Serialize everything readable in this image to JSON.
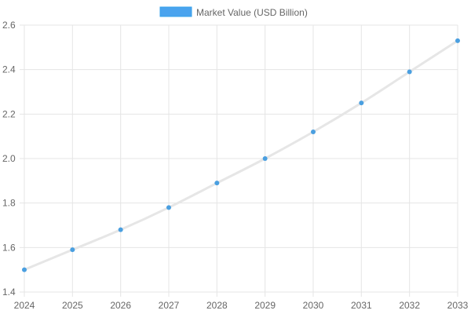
{
  "chart_data": {
    "type": "line",
    "title": "",
    "xlabel": "",
    "ylabel": "",
    "x": [
      "2024",
      "2025",
      "2026",
      "2027",
      "2028",
      "2029",
      "2030",
      "2031",
      "2032",
      "2033"
    ],
    "series": [
      {
        "name": "Market Value (USD Billion)",
        "values": [
          1.5,
          1.59,
          1.68,
          1.78,
          1.89,
          2.0,
          2.12,
          2.25,
          2.39,
          2.53
        ]
      }
    ],
    "ylim": [
      1.4,
      2.6
    ],
    "yticks": [
      "1.4",
      "1.6",
      "1.8",
      "2.0",
      "2.2",
      "2.4",
      "2.6"
    ],
    "grid": true,
    "legend_position": "top",
    "colors": {
      "line": "#e6e6e6",
      "point": "#4a9fe0",
      "legend_swatch_fill": "#4aa3ee",
      "legend_swatch_border": "#36a2eb",
      "grid": "#e5e5e5",
      "text": "#666666"
    }
  }
}
